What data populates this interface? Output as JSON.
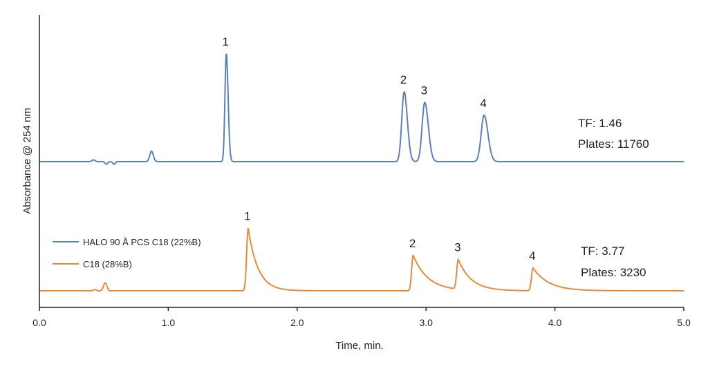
{
  "chart_data": {
    "type": "line",
    "xlabel": "Time, min.",
    "ylabel": "Absorbance @ 254 nm",
    "xlim": [
      0,
      5
    ],
    "x_ticks": [
      "0.0",
      "1.0",
      "2.0",
      "3.0",
      "4.0",
      "5.0"
    ],
    "grid": false,
    "legend_position": "lower-left",
    "series": [
      {
        "name": "HALO 90 Å PCS C18 (22%B)",
        "color": "#5b7fb9",
        "stats": {
          "tf": "TF: 1.46",
          "plates": "Plates: 11760"
        },
        "peaks": [
          {
            "label": "1",
            "t": 1.45,
            "height": 0.93
          },
          {
            "label": "2",
            "t": 2.83,
            "height": 0.6
          },
          {
            "label": "3",
            "t": 2.99,
            "height": 0.51
          },
          {
            "label": "4",
            "t": 3.45,
            "height": 0.4
          }
        ]
      },
      {
        "name": "C18 (28%B)",
        "color": "#e68a3c",
        "stats": {
          "tf": "TF: 3.77",
          "plates": "Plates: 3230"
        },
        "peaks": [
          {
            "label": "1",
            "t": 1.62,
            "height": 0.55
          },
          {
            "label": "2",
            "t": 2.9,
            "height": 0.31
          },
          {
            "label": "3",
            "t": 3.25,
            "height": 0.26
          },
          {
            "label": "4",
            "t": 3.83,
            "height": 0.2
          }
        ]
      }
    ]
  }
}
